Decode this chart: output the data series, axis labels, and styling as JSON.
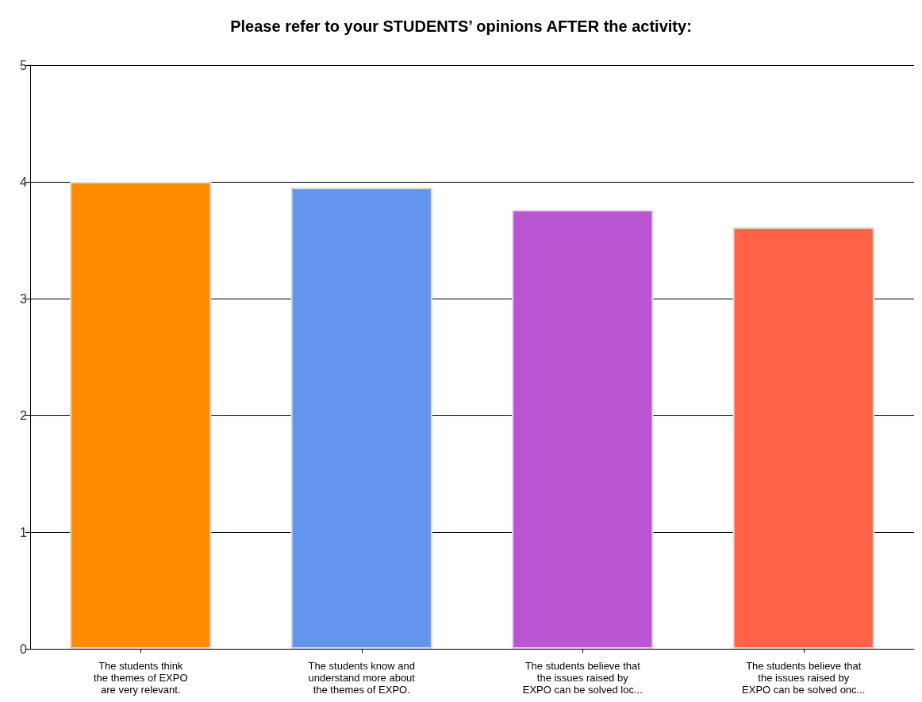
{
  "chart_data": {
    "type": "bar",
    "title": "Please refer to your STUDENTS’ opinions AFTER the activity:",
    "categories": [
      "The students think\nthe themes of EXPO\nare very relevant.",
      "The students know and\nunderstand more about\nthe themes of EXPO.",
      "The students believe that\nthe issues raised by\nEXPO can be solved loc...",
      "The students believe that\nthe issues raised by\nEXPO can be solved onc..."
    ],
    "values": [
      4.0,
      3.95,
      3.76,
      3.61
    ],
    "colors": [
      "#ff8c00",
      "#6495ed",
      "#ba55d3",
      "#ff6347"
    ],
    "ylim": [
      0,
      5
    ],
    "yticks": [
      0,
      1,
      2,
      3,
      4,
      5
    ],
    "grid": "y"
  }
}
